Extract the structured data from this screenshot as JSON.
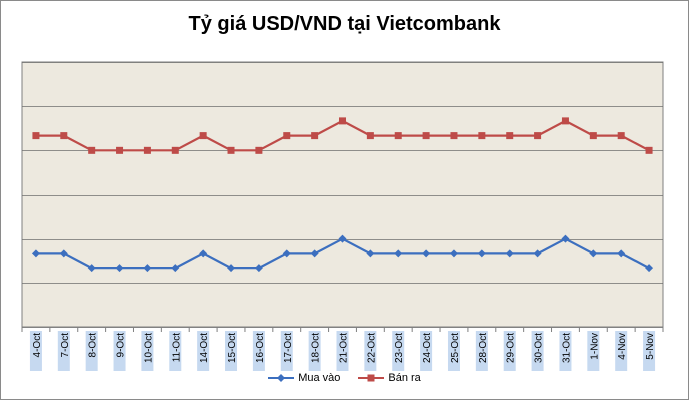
{
  "chart_data": {
    "type": "line",
    "title": "Tỷ giá USD/VND tại Vietcombank",
    "categories": [
      "4-Oct",
      "7-Oct",
      "8-Oct",
      "9-Oct",
      "10-Oct",
      "11-Oct",
      "14-Oct",
      "15-Oct",
      "16-Oct",
      "17-Oct",
      "18-Oct",
      "21-Oct",
      "22-Oct",
      "23-Oct",
      "24-Oct",
      "25-Oct",
      "28-Oct",
      "29-Oct",
      "30-Oct",
      "31-Oct",
      "1-Nov",
      "4-Nov",
      "5-Nov"
    ],
    "series": [
      {
        "name": "Mua vào",
        "color": "#3c6fbf",
        "marker": "diamond",
        "values": [
          21085,
          21085,
          21080,
          21080,
          21080,
          21080,
          21085,
          21080,
          21080,
          21085,
          21085,
          21090,
          21085,
          21085,
          21085,
          21085,
          21085,
          21085,
          21085,
          21090,
          21085,
          21085,
          21080
        ]
      },
      {
        "name": "Bán ra",
        "color": "#be4b48",
        "marker": "square",
        "values": [
          21125,
          21125,
          21120,
          21120,
          21120,
          21120,
          21125,
          21120,
          21120,
          21125,
          21125,
          21130,
          21125,
          21125,
          21125,
          21125,
          21125,
          21125,
          21125,
          21130,
          21125,
          21125,
          21120
        ]
      }
    ],
    "ylim": [
      21060,
      21150
    ],
    "grid": true,
    "y_tick_labels_visible": false,
    "plot_background": "#ede9df",
    "legend_position": "bottom"
  }
}
